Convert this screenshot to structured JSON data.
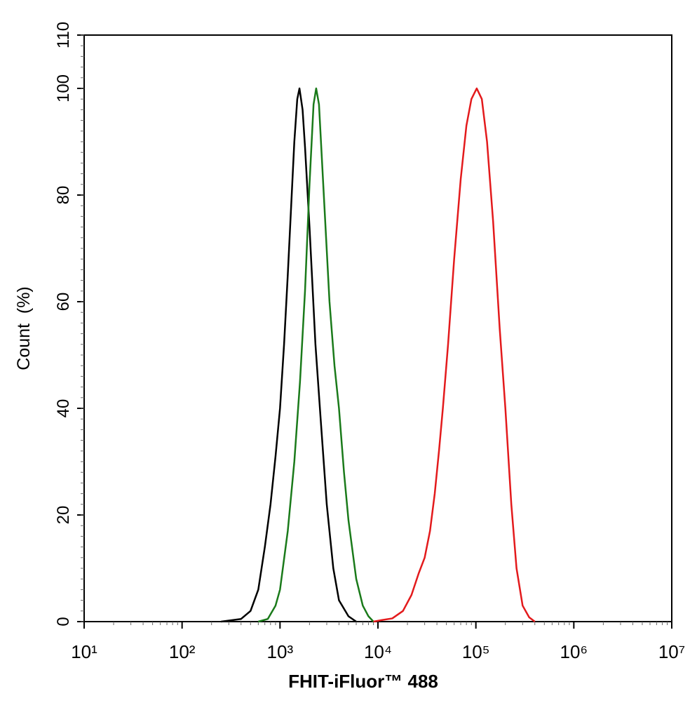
{
  "chart_data": {
    "type": "line",
    "xlabel": "FHIT-iFluor™ 488",
    "ylabel": "Count  (%)",
    "xscale": "log",
    "xlim": [
      10,
      10000000
    ],
    "xticks": [
      {
        "value": 10,
        "label": "10¹"
      },
      {
        "value": 100,
        "label": "10²"
      },
      {
        "value": 1000,
        "label": "10³"
      },
      {
        "value": 10000,
        "label": "10⁴"
      },
      {
        "value": 100000,
        "label": "10⁵"
      },
      {
        "value": 1000000,
        "label": "10⁶"
      },
      {
        "value": 10000000,
        "label": "10⁷"
      }
    ],
    "ylim": [
      0,
      110
    ],
    "yticks": [
      0,
      20,
      40,
      60,
      80,
      100,
      110
    ],
    "grid": false,
    "series": [
      {
        "color": "#000000",
        "x": [
          250,
          400,
          500,
          600,
          700,
          800,
          900,
          1000,
          1100,
          1200,
          1300,
          1400,
          1500,
          1580,
          1700,
          1800,
          2000,
          2300,
          2600,
          3000,
          3500,
          4000,
          5000,
          6000
        ],
        "values": [
          0,
          0.5,
          2,
          6,
          14,
          22,
          31,
          40,
          52,
          65,
          78,
          90,
          98,
          100,
          96,
          89,
          74,
          52,
          38,
          22,
          10,
          4,
          1,
          0
        ]
      },
      {
        "color": "#1a7a1a",
        "x": [
          600,
          750,
          900,
          1000,
          1200,
          1400,
          1600,
          1800,
          2000,
          2200,
          2340,
          2500,
          2800,
          3200,
          3600,
          4000,
          4500,
          5000,
          6000,
          7000,
          8000,
          9000
        ],
        "values": [
          0,
          0.5,
          3,
          6,
          17,
          30,
          45,
          62,
          82,
          97,
          100,
          97,
          80,
          60,
          48,
          40,
          28,
          19,
          8,
          3,
          1,
          0
        ]
      },
      {
        "color": "#e31a1c",
        "x": [
          9000,
          11000,
          14000,
          18000,
          22000,
          26000,
          30000,
          34000,
          38000,
          42000,
          46000,
          52000,
          60000,
          70000,
          80000,
          90000,
          102000,
          115000,
          130000,
          150000,
          175000,
          200000,
          230000,
          260000,
          300000,
          350000,
          400000
        ],
        "values": [
          0,
          0.3,
          0.6,
          2,
          5,
          9,
          12,
          17,
          24,
          32,
          40,
          52,
          68,
          83,
          93,
          98,
          100,
          98,
          90,
          75,
          55,
          40,
          22,
          10,
          3,
          0.8,
          0
        ]
      }
    ]
  }
}
